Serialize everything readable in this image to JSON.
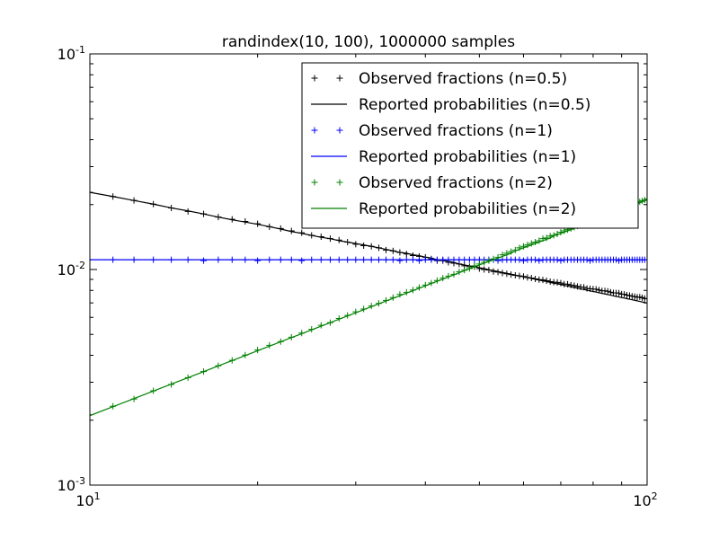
{
  "chart_data": {
    "type": "scatter",
    "title": "randindex(10, 100), 1000000 samples",
    "xlabel": "",
    "ylabel": "",
    "xscale": "log",
    "yscale": "log",
    "xlim": [
      10,
      100
    ],
    "ylim": [
      0.001,
      0.1
    ],
    "grid": false,
    "legend_position": "top-right",
    "x_ticks": [
      {
        "value": 10,
        "base": "10",
        "exp": "1"
      },
      {
        "value": 100,
        "base": "10",
        "exp": "2"
      }
    ],
    "y_ticks": [
      {
        "value": 0.001,
        "base": "10",
        "exp": "-3"
      },
      {
        "value": 0.01,
        "base": "10",
        "exp": "-2"
      },
      {
        "value": 0.1,
        "base": "10",
        "exp": "-1"
      }
    ],
    "x": [
      10,
      11,
      12,
      13,
      14,
      15,
      16,
      17,
      18,
      19,
      20,
      21,
      22,
      23,
      24,
      25,
      26,
      27,
      28,
      29,
      30,
      31,
      32,
      33,
      34,
      35,
      36,
      37,
      38,
      39,
      40,
      41,
      42,
      43,
      44,
      45,
      46,
      47,
      48,
      49,
      50,
      51,
      52,
      53,
      54,
      55,
      56,
      57,
      58,
      59,
      60,
      61,
      62,
      63,
      64,
      65,
      66,
      67,
      68,
      69,
      70,
      71,
      72,
      73,
      74,
      75,
      76,
      77,
      78,
      79,
      80,
      81,
      82,
      83,
      84,
      85,
      86,
      87,
      88,
      89,
      90,
      91,
      92,
      93,
      94,
      95,
      96,
      97,
      98,
      99,
      100
    ],
    "series": [
      {
        "name": "Observed fractions (n=0.5)",
        "kind": "markers",
        "color": "#000000",
        "values": [
          0.0228,
          0.0218,
          0.0209,
          0.0201,
          0.0193,
          0.0186,
          0.0181,
          0.0175,
          0.0171,
          0.0167,
          0.0163,
          0.0158,
          0.0155,
          0.0151,
          0.0148,
          0.0144,
          0.0142,
          0.0139,
          0.0137,
          0.0134,
          0.0131,
          0.0129,
          0.0128,
          0.0126,
          0.0123,
          0.0122,
          0.012,
          0.0118,
          0.0116,
          0.0115,
          0.0114,
          0.0112,
          0.011,
          0.011,
          0.0108,
          0.0107,
          0.0106,
          0.0104,
          0.0103,
          0.0103,
          0.0101,
          0.01,
          0.00994,
          0.00979,
          0.00973,
          0.00963,
          0.00955,
          0.00948,
          0.00939,
          0.00934,
          0.00928,
          0.00918,
          0.00913,
          0.00904,
          0.00898,
          0.00894,
          0.00887,
          0.00878,
          0.00873,
          0.00871,
          0.00865,
          0.00856,
          0.00855,
          0.00846,
          0.00841,
          0.00834,
          0.00829,
          0.00827,
          0.00817,
          0.00815,
          0.00812,
          0.0081,
          0.00803,
          0.00796,
          0.00796,
          0.00792,
          0.00785,
          0.00779,
          0.00778,
          0.00777,
          0.00769,
          0.00767,
          0.00761,
          0.00757,
          0.00752,
          0.00749,
          0.00744,
          0.00745,
          0.0074,
          0.00734,
          0.00731
        ]
      },
      {
        "name": "Reported probabilities (n=0.5)",
        "kind": "line",
        "color": "#000000",
        "values": [
          0.0228,
          0.0218,
          0.0209,
          0.0201,
          0.0193,
          0.0187,
          0.0181,
          0.0175,
          0.017,
          0.0166,
          0.0162,
          0.0158,
          0.0154,
          0.015,
          0.0147,
          0.0144,
          0.0141,
          0.0139,
          0.0136,
          0.0134,
          0.0132,
          0.013,
          0.0128,
          0.0126,
          0.0124,
          0.0122,
          0.012,
          0.0119,
          0.0117,
          0.0116,
          0.0114,
          0.0113,
          0.0111,
          0.011,
          0.0109,
          0.0108,
          0.0106,
          0.0105,
          0.0104,
          0.0103,
          0.0102,
          0.0101,
          0.00998,
          0.00988,
          0.00979,
          0.00969,
          0.0096,
          0.00951,
          0.00942,
          0.00933,
          0.00925,
          0.00917,
          0.00909,
          0.00901,
          0.00893,
          0.00886,
          0.00879,
          0.00871,
          0.00864,
          0.00858,
          0.00851,
          0.00844,
          0.00838,
          0.00832,
          0.00825,
          0.00819,
          0.00813,
          0.00808,
          0.00802,
          0.00796,
          0.00791,
          0.00786,
          0.0078,
          0.00775,
          0.0077,
          0.00765,
          0.0076,
          0.00755,
          0.0075,
          0.00746,
          0.00741,
          0.00737,
          0.00732,
          0.00728,
          0.00724,
          0.0072,
          0.00715,
          0.00711,
          0.00707,
          0.00703,
          0.00699
        ]
      },
      {
        "name": "Observed fractions (n=1)",
        "kind": "markers",
        "color": "#0000ff",
        "values": [
          0.0111,
          0.0111,
          0.0111,
          0.0111,
          0.0111,
          0.0111,
          0.011,
          0.0111,
          0.0111,
          0.0111,
          0.011,
          0.0111,
          0.0111,
          0.0111,
          0.011,
          0.0111,
          0.0111,
          0.0111,
          0.0111,
          0.0111,
          0.0111,
          0.0111,
          0.0111,
          0.0111,
          0.0111,
          0.0111,
          0.011,
          0.0111,
          0.0111,
          0.011,
          0.0111,
          0.0111,
          0.0111,
          0.0111,
          0.0111,
          0.0111,
          0.0111,
          0.0111,
          0.0111,
          0.0111,
          0.0111,
          0.0111,
          0.0111,
          0.0111,
          0.011,
          0.0111,
          0.0111,
          0.0111,
          0.0111,
          0.0111,
          0.011,
          0.0111,
          0.0111,
          0.0111,
          0.011,
          0.0111,
          0.0111,
          0.0111,
          0.0111,
          0.0111,
          0.011,
          0.0111,
          0.0111,
          0.0111,
          0.0111,
          0.0111,
          0.0111,
          0.0111,
          0.0111,
          0.011,
          0.0111,
          0.0111,
          0.0111,
          0.0111,
          0.0111,
          0.0111,
          0.0111,
          0.0111,
          0.0111,
          0.011,
          0.0111,
          0.0111,
          0.0111,
          0.0111,
          0.0111,
          0.0111,
          0.0111,
          0.0111,
          0.0111,
          0.0111,
          0.0111
        ]
      },
      {
        "name": "Reported probabilities (n=1)",
        "kind": "line",
        "color": "#0000ff",
        "values": [
          0.0111,
          0.0111,
          0.0111,
          0.0111,
          0.0111,
          0.0111,
          0.0111,
          0.0111,
          0.0111,
          0.0111,
          0.0111,
          0.0111,
          0.0111,
          0.0111,
          0.0111,
          0.0111,
          0.0111,
          0.0111,
          0.0111,
          0.0111,
          0.0111,
          0.0111,
          0.0111,
          0.0111,
          0.0111,
          0.0111,
          0.0111,
          0.0111,
          0.0111,
          0.0111,
          0.0111,
          0.0111,
          0.0111,
          0.0111,
          0.0111,
          0.0111,
          0.0111,
          0.0111,
          0.0111,
          0.0111,
          0.0111,
          0.0111,
          0.0111,
          0.0111,
          0.0111,
          0.0111,
          0.0111,
          0.0111,
          0.0111,
          0.0111,
          0.0111,
          0.0111,
          0.0111,
          0.0111,
          0.0111,
          0.0111,
          0.0111,
          0.0111,
          0.0111,
          0.0111,
          0.0111,
          0.0111,
          0.0111,
          0.0111,
          0.0111,
          0.0111,
          0.0111,
          0.0111,
          0.0111,
          0.0111,
          0.0111,
          0.0111,
          0.0111,
          0.0111,
          0.0111,
          0.0111,
          0.0111,
          0.0111,
          0.0111,
          0.0111,
          0.0111,
          0.0111,
          0.0111,
          0.0111,
          0.0111,
          0.0111,
          0.0111,
          0.0111,
          0.0111,
          0.0111,
          0.0111
        ]
      },
      {
        "name": "Observed fractions (n=2)",
        "kind": "markers",
        "color": "#008000",
        "values": [
          0.00212,
          0.00232,
          0.00251,
          0.00274,
          0.00293,
          0.00315,
          0.00336,
          0.00358,
          0.00379,
          0.00401,
          0.00423,
          0.00445,
          0.00463,
          0.00485,
          0.00507,
          0.00528,
          0.00551,
          0.00567,
          0.00593,
          0.00612,
          0.00636,
          0.00656,
          0.00677,
          0.00696,
          0.00719,
          0.00741,
          0.00766,
          0.00784,
          0.00803,
          0.00825,
          0.00846,
          0.00866,
          0.00889,
          0.00912,
          0.00932,
          0.0095,
          0.00975,
          0.00993,
          0.0101,
          0.0104,
          0.0106,
          0.0108,
          0.011,
          0.0112,
          0.0114,
          0.0117,
          0.0119,
          0.0121,
          0.0123,
          0.0126,
          0.0128,
          0.013,
          0.0132,
          0.0134,
          0.0136,
          0.0139,
          0.014,
          0.0143,
          0.0144,
          0.0146,
          0.0149,
          0.0151,
          0.0153,
          0.0155,
          0.0157,
          0.0159,
          0.0162,
          0.0164,
          0.0166,
          0.0168,
          0.017,
          0.0173,
          0.0175,
          0.0176,
          0.0179,
          0.0181,
          0.0183,
          0.0185,
          0.0187,
          0.0189,
          0.0191,
          0.0193,
          0.0196,
          0.0197,
          0.02,
          0.0201,
          0.0204,
          0.0206,
          0.0208,
          0.021,
          0.0212
        ]
      },
      {
        "name": "Reported probabilities (n=2)",
        "kind": "line",
        "color": "#008000",
        "values": [
          0.0021,
          0.00231,
          0.00252,
          0.00273,
          0.00294,
          0.00315,
          0.00336,
          0.00357,
          0.00378,
          0.00399,
          0.0042,
          0.00441,
          0.00462,
          0.00483,
          0.00504,
          0.00525,
          0.00546,
          0.00567,
          0.00588,
          0.00609,
          0.0063,
          0.00651,
          0.00672,
          0.00693,
          0.00714,
          0.00735,
          0.00756,
          0.00777,
          0.00798,
          0.00819,
          0.0084,
          0.00861,
          0.00882,
          0.00903,
          0.00924,
          0.00945,
          0.00966,
          0.00987,
          0.0101,
          0.0103,
          0.0105,
          0.0107,
          0.0109,
          0.0111,
          0.0113,
          0.0115,
          0.0117,
          0.0119,
          0.0122,
          0.0124,
          0.0126,
          0.0128,
          0.013,
          0.0132,
          0.0134,
          0.0136,
          0.0138,
          0.014,
          0.0143,
          0.0145,
          0.0147,
          0.0149,
          0.0151,
          0.0153,
          0.0155,
          0.0157,
          0.0159,
          0.0161,
          0.0164,
          0.0166,
          0.0168,
          0.017,
          0.0172,
          0.0174,
          0.0176,
          0.0178,
          0.018,
          0.0182,
          0.0185,
          0.0187,
          0.0189,
          0.0191,
          0.0193,
          0.0195,
          0.0197,
          0.0199,
          0.0202,
          0.0204,
          0.0206,
          0.0208,
          0.021
        ]
      }
    ]
  }
}
